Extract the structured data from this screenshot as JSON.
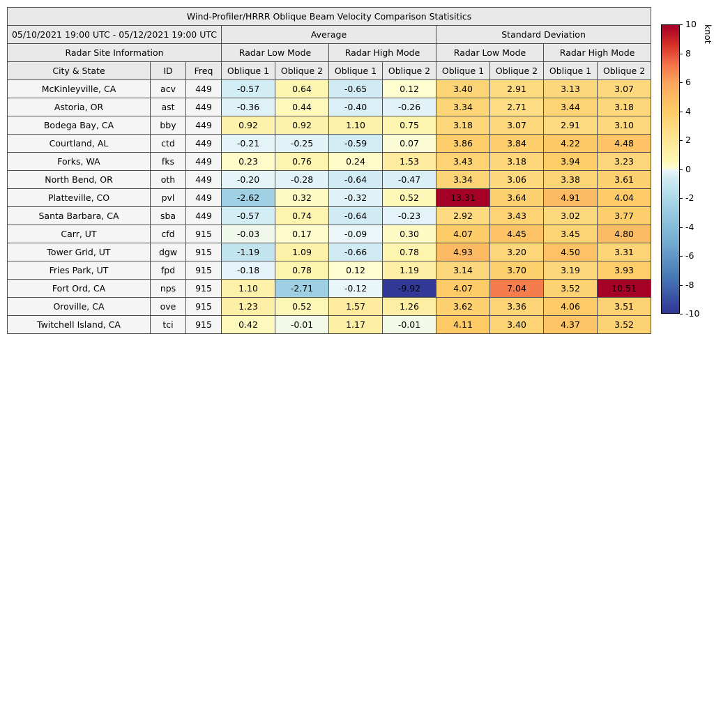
{
  "title": "Wind-Profiler/HRRR Oblique Beam Velocity Comparison Statisitics",
  "table": {
    "date_range": "05/10/2021 19:00 UTC - 05/12/2021 19:00 UTC",
    "avg_label": "Average",
    "std_label": "Standard Deviation",
    "site_info_label": "Radar Site Information",
    "mode_labels": [
      "Radar Low Mode",
      "Radar High Mode",
      "Radar Low Mode",
      "Radar High Mode"
    ],
    "columns": [
      "City & State",
      "ID",
      "Freq",
      "Oblique 1",
      "Oblique 2",
      "Oblique 1",
      "Oblique 2",
      "Oblique 1",
      "Oblique 2",
      "Oblique 1",
      "Oblique 2"
    ]
  },
  "chart_data": {
    "type": "table",
    "title": "Wind-Profiler/HRRR Oblique Beam Velocity Comparison Statisitics",
    "value_columns": [
      "Average Low Oblique 1",
      "Average Low Oblique 2",
      "Average High Oblique 1",
      "Average High Oblique 2",
      "StdDev Low Oblique 1",
      "StdDev Low Oblique 2",
      "StdDev High Oblique 1",
      "StdDev High Oblique 2"
    ],
    "rows": [
      {
        "city": "McKinleyville, CA",
        "id": "acv",
        "freq": "449",
        "values": [
          -0.57,
          0.64,
          -0.65,
          0.12,
          3.4,
          2.91,
          3.13,
          3.07
        ]
      },
      {
        "city": "Astoria, OR",
        "id": "ast",
        "freq": "449",
        "values": [
          -0.36,
          0.44,
          -0.4,
          -0.26,
          3.34,
          2.71,
          3.44,
          3.18
        ]
      },
      {
        "city": "Bodega Bay, CA",
        "id": "bby",
        "freq": "449",
        "values": [
          0.92,
          0.92,
          1.1,
          0.75,
          3.18,
          3.07,
          2.91,
          3.1
        ]
      },
      {
        "city": "Courtland, AL",
        "id": "ctd",
        "freq": "449",
        "values": [
          -0.21,
          -0.25,
          -0.59,
          0.07,
          3.86,
          3.84,
          4.22,
          4.48
        ]
      },
      {
        "city": "Forks, WA",
        "id": "fks",
        "freq": "449",
        "values": [
          0.23,
          0.76,
          0.24,
          1.53,
          3.43,
          3.18,
          3.94,
          3.23
        ]
      },
      {
        "city": "North Bend, OR",
        "id": "oth",
        "freq": "449",
        "values": [
          -0.2,
          -0.28,
          -0.64,
          -0.47,
          3.34,
          3.06,
          3.38,
          3.61
        ]
      },
      {
        "city": "Platteville, CO",
        "id": "pvl",
        "freq": "449",
        "values": [
          -2.62,
          0.32,
          -0.32,
          0.52,
          13.31,
          3.64,
          4.91,
          4.04
        ]
      },
      {
        "city": "Santa Barbara, CA",
        "id": "sba",
        "freq": "449",
        "values": [
          -0.57,
          0.74,
          -0.64,
          -0.23,
          2.92,
          3.43,
          3.02,
          3.77
        ]
      },
      {
        "city": "Carr, UT",
        "id": "cfd",
        "freq": "915",
        "values": [
          -0.03,
          0.17,
          -0.09,
          0.3,
          4.07,
          4.45,
          3.45,
          4.8
        ]
      },
      {
        "city": "Tower Grid, UT",
        "id": "dgw",
        "freq": "915",
        "values": [
          -1.19,
          1.09,
          -0.66,
          0.78,
          4.93,
          3.2,
          4.5,
          3.31
        ]
      },
      {
        "city": "Fries Park, UT",
        "id": "fpd",
        "freq": "915",
        "values": [
          -0.18,
          0.78,
          0.12,
          1.19,
          3.14,
          3.7,
          3.19,
          3.93
        ]
      },
      {
        "city": "Fort Ord, CA",
        "id": "nps",
        "freq": "915",
        "values": [
          1.1,
          -2.71,
          -0.12,
          -9.92,
          4.07,
          7.04,
          3.52,
          10.51
        ]
      },
      {
        "city": "Oroville, CA",
        "id": "ove",
        "freq": "915",
        "values": [
          1.23,
          0.52,
          1.57,
          1.26,
          3.62,
          3.36,
          4.06,
          3.51
        ]
      },
      {
        "city": "Twitchell Island, CA",
        "id": "tci",
        "freq": "915",
        "values": [
          0.42,
          -0.01,
          1.17,
          -0.01,
          4.11,
          3.4,
          4.37,
          3.52
        ]
      }
    ],
    "colorbar": {
      "label": "knot",
      "vmin": -10,
      "vmax": 10,
      "ticks": [
        10,
        8,
        6,
        4,
        2,
        0,
        -2,
        -4,
        -6,
        -8,
        -10
      ],
      "colormap_stops": [
        {
          "t": 0.0,
          "c": "#313695"
        },
        {
          "t": 0.12,
          "c": "#4575b4"
        },
        {
          "t": 0.25,
          "c": "#74add1"
        },
        {
          "t": 0.4,
          "c": "#abd9e9"
        },
        {
          "t": 0.47,
          "c": "#d2ecf4"
        },
        {
          "t": 0.495,
          "c": "#e9f6fa"
        },
        {
          "t": 0.505,
          "c": "#fefdd0"
        },
        {
          "t": 0.53,
          "c": "#fdf6b2"
        },
        {
          "t": 0.6,
          "c": "#fee695"
        },
        {
          "t": 0.7,
          "c": "#fdcc67"
        },
        {
          "t": 0.8,
          "c": "#fba55d"
        },
        {
          "t": 0.86,
          "c": "#f4764a"
        },
        {
          "t": 0.93,
          "c": "#d73027"
        },
        {
          "t": 1.0,
          "c": "#a50026"
        }
      ]
    }
  }
}
